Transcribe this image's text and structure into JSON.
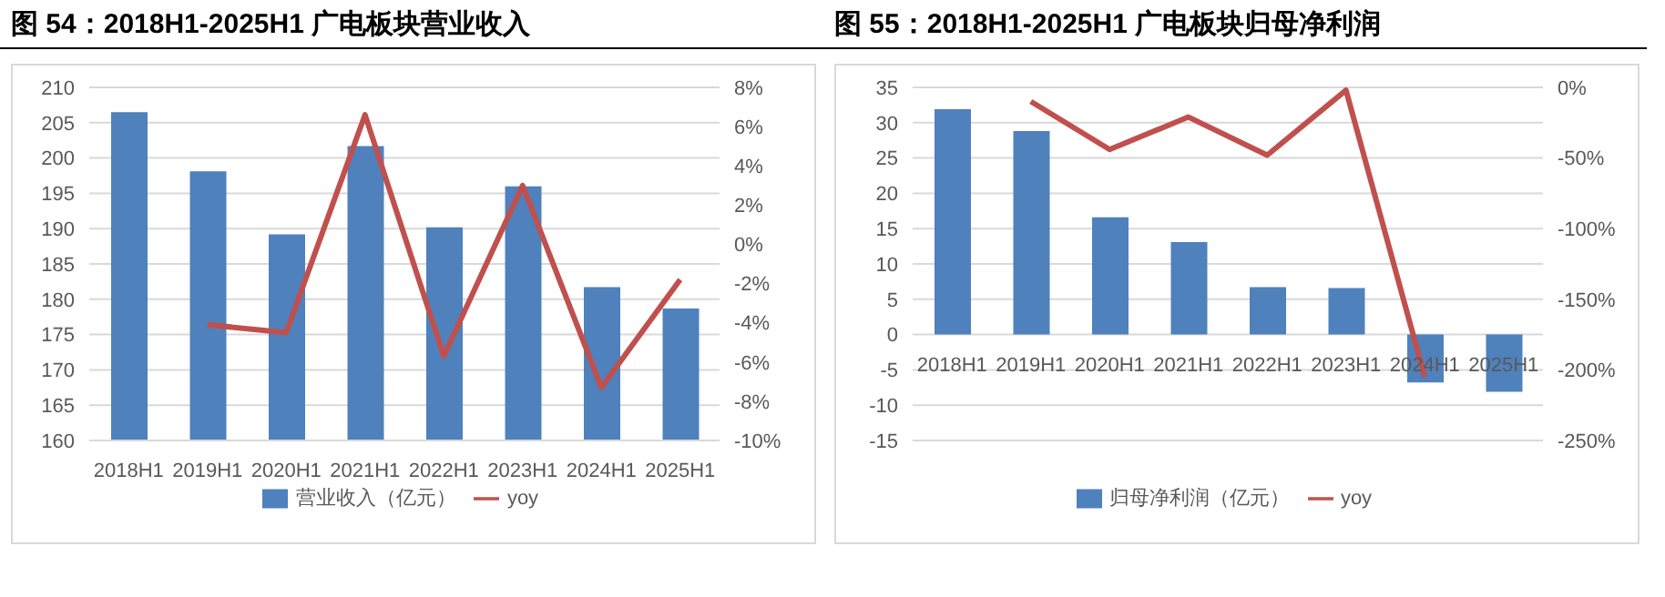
{
  "chart_data": [
    {
      "type": "bar",
      "title": "图 54：2018H1-2025H1 广电板块营业收入",
      "categories": [
        "2018H1",
        "2019H1",
        "2020H1",
        "2021H1",
        "2022H1",
        "2023H1",
        "2024H1",
        "2025H1"
      ],
      "series": [
        {
          "name": "营业收入（亿元）",
          "color": "#4f81bd",
          "values": [
            206.5,
            198.1,
            189.2,
            201.7,
            190.2,
            196.0,
            181.7,
            178.7
          ]
        },
        {
          "name": "yoy",
          "type": "line",
          "axis": "y2",
          "color": "#c0504d",
          "values": [
            null,
            -4.1,
            -4.5,
            6.6,
            -5.7,
            3.0,
            -7.3,
            -1.8
          ]
        }
      ],
      "ylim": [
        160,
        210
      ],
      "yticks": [
        160,
        165,
        170,
        175,
        180,
        185,
        190,
        195,
        200,
        205,
        210
      ],
      "y2lim": [
        -10,
        8
      ],
      "y2ticks": [
        {
          "value": -10,
          "label": "-10%"
        },
        {
          "value": -8,
          "label": "-8%"
        },
        {
          "value": -6,
          "label": "-6%"
        },
        {
          "value": -4,
          "label": "-4%"
        },
        {
          "value": -2,
          "label": "-2%"
        },
        {
          "value": 0,
          "label": "0%"
        },
        {
          "value": 2,
          "label": "2%"
        },
        {
          "value": 4,
          "label": "4%"
        },
        {
          "value": 6,
          "label": "6%"
        },
        {
          "value": 8,
          "label": "8%"
        }
      ],
      "grid": "y",
      "legend": "bottom"
    },
    {
      "type": "bar",
      "title": "图 55：2018H1-2025H1 广电板块归母净利润",
      "categories": [
        "2018H1",
        "2019H1",
        "2020H1",
        "2021H1",
        "2022H1",
        "2023H1",
        "2024H1",
        "2025H1"
      ],
      "series": [
        {
          "name": "归母净利润（亿元）",
          "color": "#4f81bd",
          "values": [
            31.9,
            28.8,
            16.6,
            13.1,
            6.7,
            6.6,
            -6.8,
            -8.1
          ]
        },
        {
          "name": "yoy",
          "type": "line",
          "axis": "y2",
          "color": "#c0504d",
          "values": [
            null,
            -10,
            -44,
            -21,
            -48,
            -2,
            -205,
            null
          ]
        }
      ],
      "ylim": [
        -15,
        35
      ],
      "yticks": [
        -15,
        -10,
        -5,
        0,
        5,
        10,
        15,
        20,
        25,
        30,
        35
      ],
      "y2lim": [
        -250,
        0
      ],
      "y2ticks": [
        {
          "value": -250,
          "label": "-250%"
        },
        {
          "value": -200,
          "label": "-200%"
        },
        {
          "value": -150,
          "label": "-150%"
        },
        {
          "value": -100,
          "label": "-100%"
        },
        {
          "value": -50,
          "label": "-50%"
        },
        {
          "value": 0,
          "label": "0%"
        }
      ],
      "grid": "y",
      "legend": "bottom"
    }
  ]
}
